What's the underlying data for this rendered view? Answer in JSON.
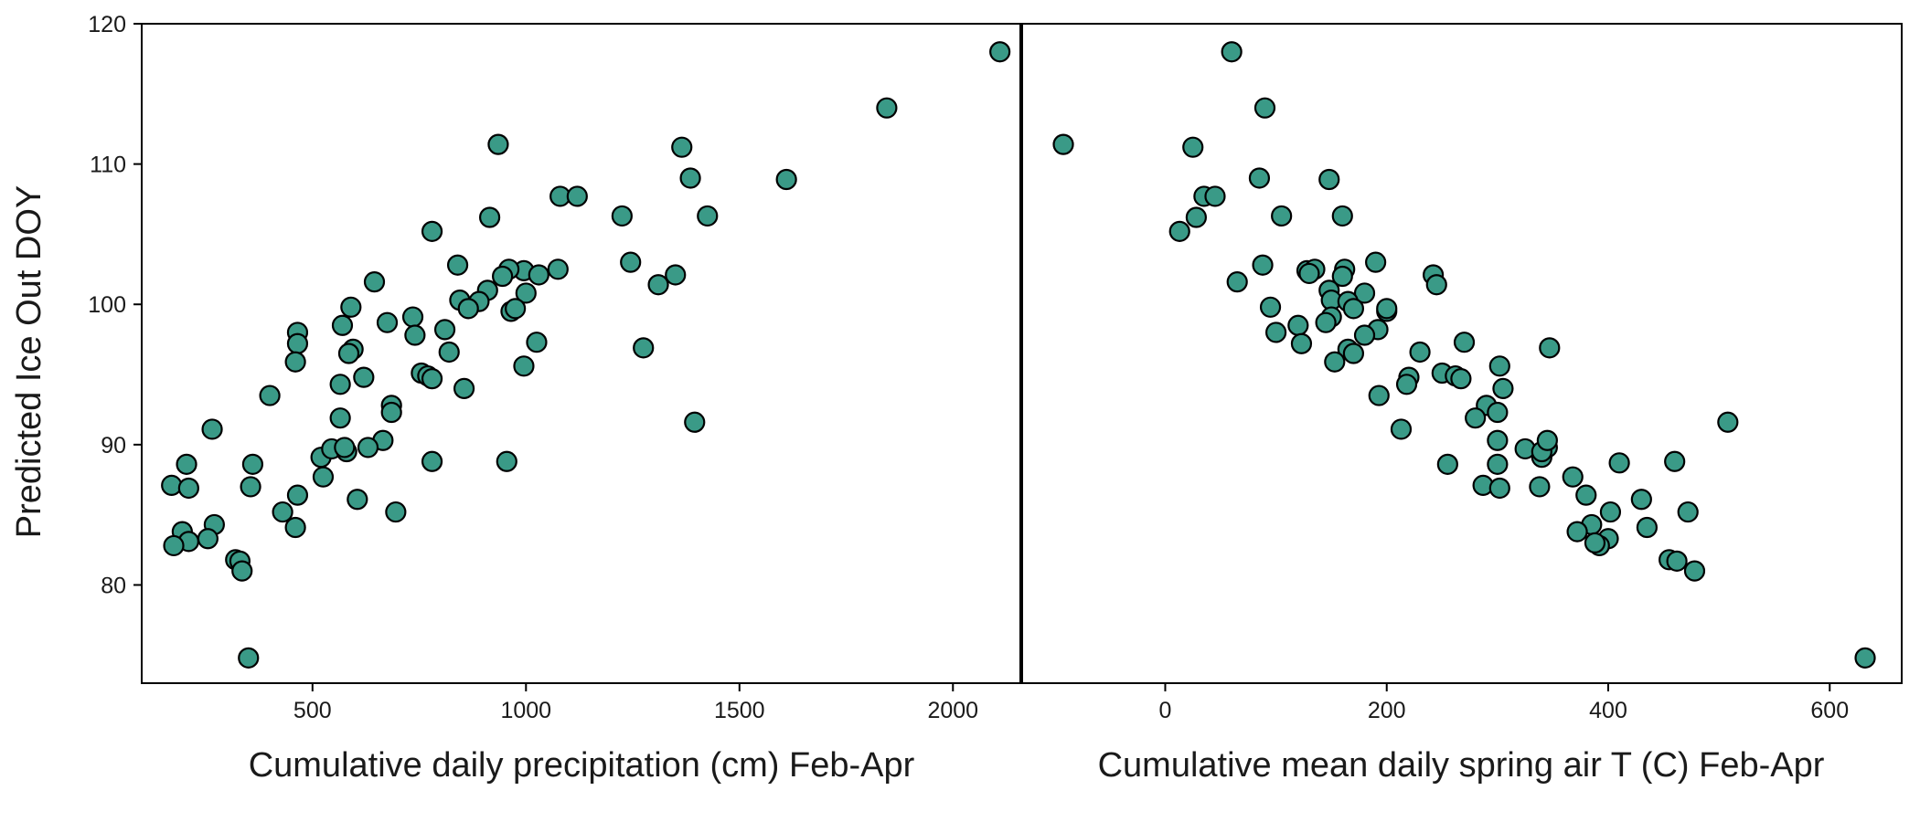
{
  "figure": {
    "ylabel": "Predicted Ice Out DOY",
    "point_fill": "#3a9a87",
    "point_stroke": "#000000"
  },
  "chart_data": [
    {
      "type": "scatter",
      "title": "",
      "xlabel": "Cumulative daily precipitation (cm) Feb-Apr",
      "ylabel": "Predicted Ice Out DOY",
      "xlim": [
        100,
        2160
      ],
      "ylim": [
        73,
        120
      ],
      "xticks": [
        500,
        1000,
        1500,
        2000
      ],
      "yticks": [
        80,
        90,
        100,
        110,
        120
      ],
      "grid": false,
      "points": [
        [
          2110,
          118.0
        ],
        [
          1845,
          114.0
        ],
        [
          935,
          111.4
        ],
        [
          1365,
          111.2
        ],
        [
          1385,
          109.0
        ],
        [
          1610,
          108.9
        ],
        [
          1080,
          107.7
        ],
        [
          1120,
          107.7
        ],
        [
          1425,
          106.3
        ],
        [
          1225,
          106.3
        ],
        [
          915,
          106.2
        ],
        [
          780,
          105.2
        ],
        [
          1245,
          103.0
        ],
        [
          840,
          102.8
        ],
        [
          995,
          102.4
        ],
        [
          1075,
          102.5
        ],
        [
          960,
          102.5
        ],
        [
          945,
          102.0
        ],
        [
          1030,
          102.1
        ],
        [
          1350,
          102.1
        ],
        [
          645,
          101.6
        ],
        [
          1310,
          101.4
        ],
        [
          910,
          101.0
        ],
        [
          1000,
          100.8
        ],
        [
          845,
          100.3
        ],
        [
          890,
          100.2
        ],
        [
          590,
          99.8
        ],
        [
          865,
          99.7
        ],
        [
          965,
          99.5
        ],
        [
          975,
          99.7
        ],
        [
          735,
          99.1
        ],
        [
          675,
          98.7
        ],
        [
          570,
          98.5
        ],
        [
          465,
          98.0
        ],
        [
          810,
          98.2
        ],
        [
          740,
          97.8
        ],
        [
          465,
          97.2
        ],
        [
          1025,
          97.3
        ],
        [
          1275,
          96.9
        ],
        [
          595,
          96.8
        ],
        [
          585,
          96.5
        ],
        [
          820,
          96.6
        ],
        [
          460,
          95.9
        ],
        [
          995,
          95.6
        ],
        [
          755,
          95.1
        ],
        [
          770,
          94.9
        ],
        [
          780,
          94.7
        ],
        [
          620,
          94.8
        ],
        [
          565,
          94.3
        ],
        [
          855,
          94.0
        ],
        [
          400,
          93.5
        ],
        [
          685,
          92.8
        ],
        [
          685,
          92.3
        ],
        [
          565,
          91.9
        ],
        [
          1395,
          91.6
        ],
        [
          265,
          91.1
        ],
        [
          665,
          90.3
        ],
        [
          520,
          89.1
        ],
        [
          545,
          89.7
        ],
        [
          630,
          89.8
        ],
        [
          580,
          89.5
        ],
        [
          575,
          89.8
        ],
        [
          360,
          88.6
        ],
        [
          205,
          88.6
        ],
        [
          780,
          88.8
        ],
        [
          955,
          88.8
        ],
        [
          525,
          87.7
        ],
        [
          170,
          87.1
        ],
        [
          210,
          86.9
        ],
        [
          355,
          87.0
        ],
        [
          465,
          86.4
        ],
        [
          605,
          86.1
        ],
        [
          430,
          85.2
        ],
        [
          695,
          85.2
        ],
        [
          270,
          84.3
        ],
        [
          460,
          84.1
        ],
        [
          195,
          83.8
        ],
        [
          255,
          83.3
        ],
        [
          210,
          83.1
        ],
        [
          175,
          82.8
        ],
        [
          320,
          81.8
        ],
        [
          330,
          81.7
        ],
        [
          335,
          81.0
        ],
        [
          350,
          74.8
        ]
      ]
    },
    {
      "type": "scatter",
      "title": "",
      "xlabel": "Cumulative mean daily spring air T (C) Feb-Apr",
      "ylabel": "",
      "xlim": [
        -130,
        665
      ],
      "ylim": [
        73,
        120
      ],
      "xticks": [
        0,
        200,
        400,
        600
      ],
      "yticks": [],
      "grid": false,
      "points": [
        [
          60,
          118.0
        ],
        [
          90,
          114.0
        ],
        [
          -92,
          111.4
        ],
        [
          25,
          111.2
        ],
        [
          85,
          109.0
        ],
        [
          148,
          108.9
        ],
        [
          35,
          107.7
        ],
        [
          45,
          107.7
        ],
        [
          105,
          106.3
        ],
        [
          160,
          106.3
        ],
        [
          28,
          106.2
        ],
        [
          13,
          105.2
        ],
        [
          190,
          103.0
        ],
        [
          88,
          102.8
        ],
        [
          128,
          102.4
        ],
        [
          135,
          102.5
        ],
        [
          162,
          102.5
        ],
        [
          130,
          102.2
        ],
        [
          160,
          102.0
        ],
        [
          242,
          102.1
        ],
        [
          65,
          101.6
        ],
        [
          245,
          101.4
        ],
        [
          148,
          101.0
        ],
        [
          180,
          100.8
        ],
        [
          150,
          100.3
        ],
        [
          165,
          100.2
        ],
        [
          95,
          99.8
        ],
        [
          170,
          99.7
        ],
        [
          200,
          99.5
        ],
        [
          200,
          99.7
        ],
        [
          150,
          99.1
        ],
        [
          145,
          98.7
        ],
        [
          120,
          98.5
        ],
        [
          100,
          98.0
        ],
        [
          192,
          98.2
        ],
        [
          180,
          97.8
        ],
        [
          123,
          97.2
        ],
        [
          270,
          97.3
        ],
        [
          347,
          96.9
        ],
        [
          165,
          96.8
        ],
        [
          170,
          96.5
        ],
        [
          230,
          96.6
        ],
        [
          153,
          95.9
        ],
        [
          302,
          95.6
        ],
        [
          250,
          95.1
        ],
        [
          262,
          94.9
        ],
        [
          267,
          94.7
        ],
        [
          220,
          94.8
        ],
        [
          218,
          94.3
        ],
        [
          305,
          94.0
        ],
        [
          193,
          93.5
        ],
        [
          290,
          92.8
        ],
        [
          300,
          92.3
        ],
        [
          280,
          91.9
        ],
        [
          508,
          91.6
        ],
        [
          213,
          91.1
        ],
        [
          300,
          90.3
        ],
        [
          340,
          89.1
        ],
        [
          325,
          89.7
        ],
        [
          345,
          89.8
        ],
        [
          340,
          89.5
        ],
        [
          345,
          90.3
        ],
        [
          300,
          88.6
        ],
        [
          410,
          88.7
        ],
        [
          460,
          88.8
        ],
        [
          255,
          88.6
        ],
        [
          368,
          87.7
        ],
        [
          287,
          87.1
        ],
        [
          302,
          86.9
        ],
        [
          338,
          87.0
        ],
        [
          380,
          86.4
        ],
        [
          430,
          86.1
        ],
        [
          402,
          85.2
        ],
        [
          472,
          85.2
        ],
        [
          385,
          84.3
        ],
        [
          435,
          84.1
        ],
        [
          372,
          83.8
        ],
        [
          400,
          83.3
        ],
        [
          392,
          82.8
        ],
        [
          388,
          83.0
        ],
        [
          455,
          81.8
        ],
        [
          462,
          81.7
        ],
        [
          478,
          81.0
        ],
        [
          632,
          74.8
        ]
      ]
    }
  ]
}
